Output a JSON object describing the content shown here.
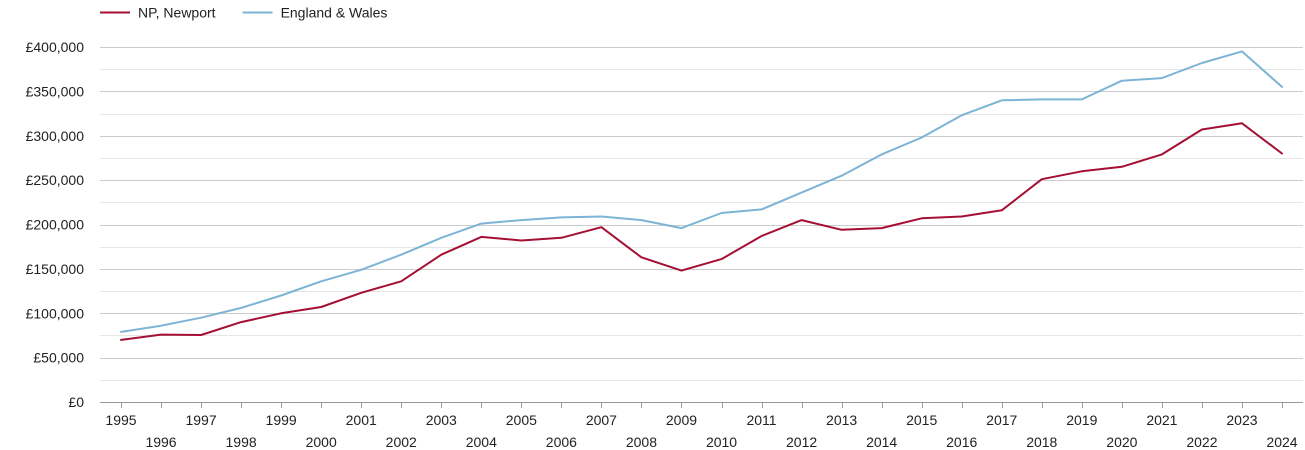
{
  "chart_data": {
    "type": "line",
    "title": "",
    "xlabel": "",
    "ylabel": "",
    "x": [
      1995,
      1996,
      1997,
      1998,
      1999,
      2000,
      2001,
      2002,
      2003,
      2004,
      2005,
      2006,
      2007,
      2008,
      2009,
      2010,
      2011,
      2012,
      2013,
      2014,
      2015,
      2016,
      2017,
      2018,
      2019,
      2020,
      2021,
      2022,
      2023,
      2024
    ],
    "series": [
      {
        "name": "NP, Newport",
        "color": "#a50f33",
        "values": [
          70000,
          76000,
          75500,
          90000,
          100000,
          107000,
          123000,
          136000,
          166000,
          186000,
          182000,
          185000,
          197000,
          163000,
          148000,
          161000,
          187000,
          205000,
          194000,
          196000,
          207000,
          209000,
          216000,
          251000,
          260000,
          265000,
          279000,
          307000,
          314000,
          280000
        ]
      },
      {
        "name": "England & Wales",
        "color": "#7db4d6",
        "values": [
          79000,
          86000,
          95000,
          106000,
          120000,
          136000,
          149000,
          166000,
          185000,
          201000,
          205000,
          208000,
          209000,
          205000,
          196000,
          213000,
          217000,
          236000,
          255000,
          279000,
          298000,
          323000,
          340000,
          341000,
          341000,
          362000,
          365000,
          382000,
          395000,
          355000
        ]
      }
    ],
    "yticks": [
      0,
      50000,
      100000,
      150000,
      200000,
      250000,
      300000,
      350000,
      400000
    ],
    "ytick_labels": [
      "£0",
      "£50,000",
      "£100,000",
      "£150,000",
      "£200,000",
      "£250,000",
      "£300,000",
      "£350,000",
      "£400,000"
    ],
    "xtick_labels": [
      "1995",
      "1996",
      "1997",
      "1998",
      "1999",
      "2000",
      "2001",
      "2002",
      "2003",
      "2004",
      "2005",
      "2006",
      "2007",
      "2008",
      "2009",
      "2010",
      "2011",
      "2012",
      "2013",
      "2014",
      "2015",
      "2016",
      "2017",
      "2018",
      "2019",
      "2020",
      "2021",
      "2022",
      "2023",
      "2024"
    ],
    "ylim": [
      0,
      400000
    ],
    "grid": true,
    "legend_position": "top-left"
  }
}
